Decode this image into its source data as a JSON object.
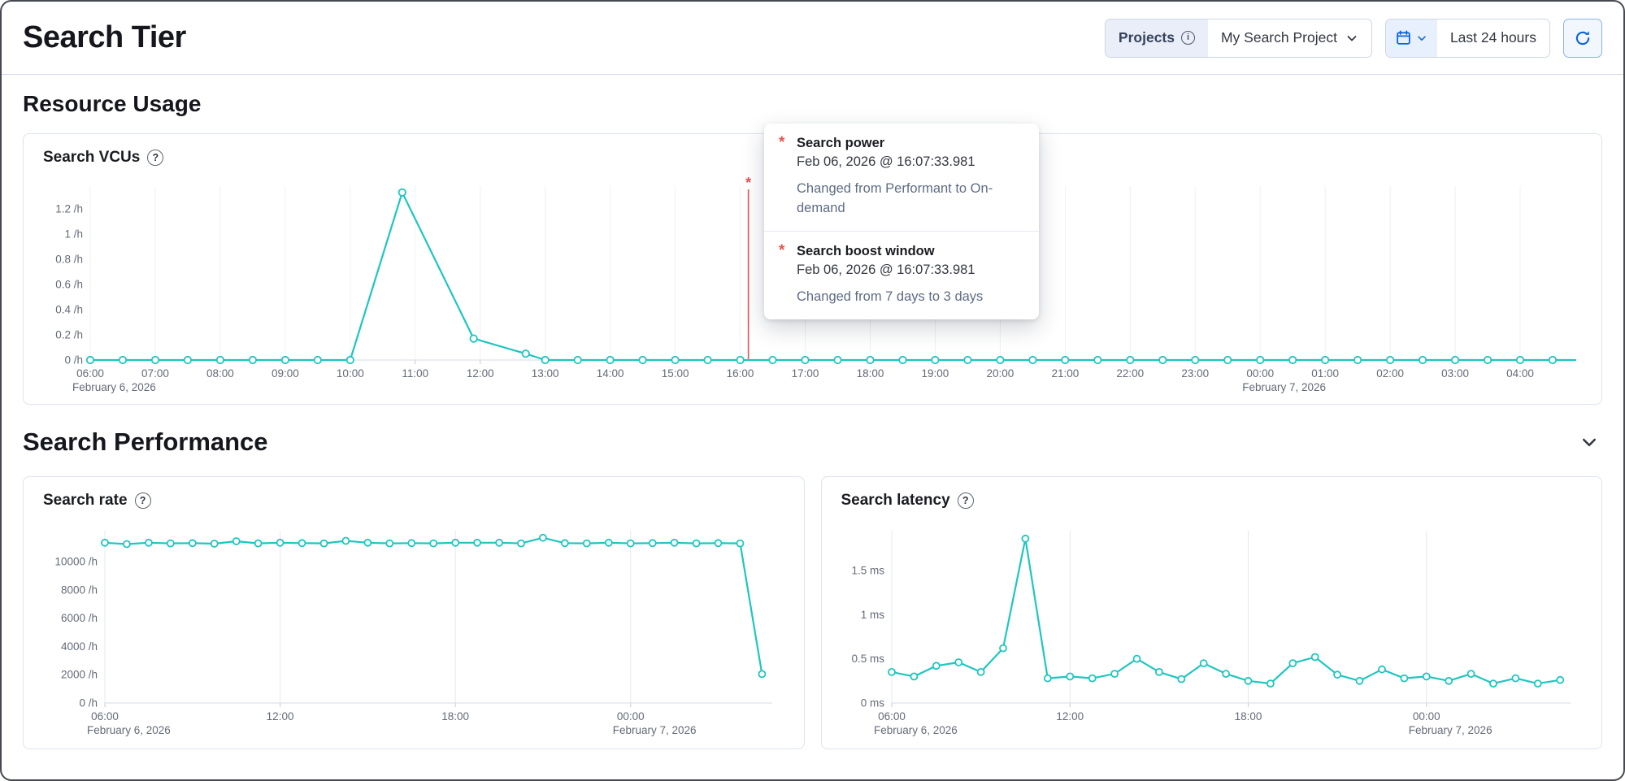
{
  "header": {
    "title": "Search Tier",
    "projects_label": "Projects",
    "project_name": "My Search Project",
    "time_range": "Last 24 hours"
  },
  "sections": {
    "resource_usage": {
      "title": "Resource Usage"
    },
    "search_performance": {
      "title": "Search Performance"
    }
  },
  "icons": {
    "info_glyph": "i",
    "help_glyph": "?"
  },
  "colors": {
    "accent_teal": "#1ec6c0",
    "annotation_red": "#e5534f",
    "primary_blue": "#0b64dd",
    "axis_text": "#646a77"
  },
  "annotation_tooltip": {
    "entries": [
      {
        "marker": "*",
        "title": "Search power",
        "timestamp": "Feb 06, 2026 @ 16:07:33.981",
        "description": "Changed from Performant to On-demand"
      },
      {
        "marker": "*",
        "title": "Search boost window",
        "timestamp": "Feb 06, 2026 @ 16:07:33.981",
        "description": "Changed from 7 days to 3 days"
      }
    ]
  },
  "chart_data": [
    {
      "type": "line",
      "title": "Search VCUs",
      "ylabel_unit": "/h",
      "xlim": [
        6,
        28.85
      ],
      "ylim": [
        0,
        1.38
      ],
      "yticks": [
        {
          "v": 0,
          "label": "0 /h"
        },
        {
          "v": 0.2,
          "label": "0.2 /h"
        },
        {
          "v": 0.4,
          "label": "0.4 /h"
        },
        {
          "v": 0.6,
          "label": "0.6 /h"
        },
        {
          "v": 0.8,
          "label": "0.8 /h"
        },
        {
          "v": 1,
          "label": "1 /h"
        },
        {
          "v": 1.2,
          "label": "1.2 /h"
        }
      ],
      "xticks": [
        {
          "t": 6,
          "label": "06:00",
          "sub": "February 6, 2026"
        },
        {
          "t": 7,
          "label": "07:00"
        },
        {
          "t": 8,
          "label": "08:00"
        },
        {
          "t": 9,
          "label": "09:00"
        },
        {
          "t": 10,
          "label": "10:00"
        },
        {
          "t": 11,
          "label": "11:00"
        },
        {
          "t": 12,
          "label": "12:00"
        },
        {
          "t": 13,
          "label": "13:00"
        },
        {
          "t": 14,
          "label": "14:00"
        },
        {
          "t": 15,
          "label": "15:00"
        },
        {
          "t": 16,
          "label": "16:00"
        },
        {
          "t": 17,
          "label": "17:00"
        },
        {
          "t": 18,
          "label": "18:00"
        },
        {
          "t": 19,
          "label": "19:00"
        },
        {
          "t": 20,
          "label": "20:00"
        },
        {
          "t": 21,
          "label": "21:00"
        },
        {
          "t": 22,
          "label": "22:00"
        },
        {
          "t": 23,
          "label": "23:00"
        },
        {
          "t": 24,
          "label": "00:00",
          "sub": "February 7, 2026"
        },
        {
          "t": 25,
          "label": "01:00"
        },
        {
          "t": 26,
          "label": "02:00"
        },
        {
          "t": 27,
          "label": "03:00"
        },
        {
          "t": 28,
          "label": "04:00"
        }
      ],
      "annotation": {
        "t": 16.126,
        "label": "*",
        "timestamp": "Feb 06, 2026 @ 16:07:33.981"
      },
      "points": [
        [
          6,
          0
        ],
        [
          6.5,
          0
        ],
        [
          7,
          0
        ],
        [
          7.5,
          0
        ],
        [
          8,
          0
        ],
        [
          8.5,
          0
        ],
        [
          9,
          0
        ],
        [
          9.5,
          0
        ],
        [
          10,
          0
        ],
        [
          10.8,
          1.33
        ],
        [
          11.9,
          0.17
        ],
        [
          12.7,
          0.05
        ],
        [
          13,
          0
        ],
        [
          13.5,
          0
        ],
        [
          14,
          0
        ],
        [
          14.5,
          0
        ],
        [
          15,
          0
        ],
        [
          15.5,
          0
        ],
        [
          16,
          0
        ],
        [
          16.5,
          0
        ],
        [
          17,
          0
        ],
        [
          17.5,
          0
        ],
        [
          18,
          0
        ],
        [
          18.5,
          0
        ],
        [
          19,
          0
        ],
        [
          19.5,
          0
        ],
        [
          20,
          0
        ],
        [
          20.5,
          0
        ],
        [
          21,
          0
        ],
        [
          21.5,
          0
        ],
        [
          22,
          0
        ],
        [
          22.5,
          0
        ],
        [
          23,
          0
        ],
        [
          23.5,
          0
        ],
        [
          24,
          0
        ],
        [
          24.5,
          0
        ],
        [
          25,
          0
        ],
        [
          25.5,
          0
        ],
        [
          26,
          0
        ],
        [
          26.5,
          0
        ],
        [
          27,
          0
        ],
        [
          27.5,
          0
        ],
        [
          28,
          0
        ],
        [
          28.5,
          0
        ],
        [
          28.85,
          0,
          0
        ]
      ]
    },
    {
      "type": "line",
      "title": "Search rate",
      "ylabel_unit": "/h",
      "xlim": [
        6,
        28.85
      ],
      "ylim": [
        0,
        12200
      ],
      "yticks": [
        {
          "v": 0,
          "label": "0 /h"
        },
        {
          "v": 2000,
          "label": "2000 /h"
        },
        {
          "v": 4000,
          "label": "4000 /h"
        },
        {
          "v": 6000,
          "label": "6000 /h"
        },
        {
          "v": 8000,
          "label": "8000 /h"
        },
        {
          "v": 10000,
          "label": "10000 /h"
        }
      ],
      "xticks": [
        {
          "t": 6,
          "label": "06:00",
          "sub": "February 6, 2026"
        },
        {
          "t": 12,
          "label": "12:00"
        },
        {
          "t": 18,
          "label": "18:00"
        },
        {
          "t": 24,
          "label": "00:00",
          "sub": "February 7, 2026"
        }
      ],
      "points": [
        [
          6,
          11350
        ],
        [
          6.75,
          11250
        ],
        [
          7.5,
          11350
        ],
        [
          8.25,
          11300
        ],
        [
          9,
          11320
        ],
        [
          9.75,
          11280
        ],
        [
          10.5,
          11450
        ],
        [
          11.25,
          11300
        ],
        [
          12,
          11350
        ],
        [
          12.75,
          11320
        ],
        [
          13.5,
          11300
        ],
        [
          14.25,
          11480
        ],
        [
          15,
          11350
        ],
        [
          15.75,
          11300
        ],
        [
          16.5,
          11320
        ],
        [
          17.25,
          11300
        ],
        [
          18,
          11350
        ],
        [
          18.75,
          11350
        ],
        [
          19.5,
          11350
        ],
        [
          20.25,
          11300
        ],
        [
          21,
          11700
        ],
        [
          21.75,
          11320
        ],
        [
          22.5,
          11300
        ],
        [
          23.25,
          11350
        ],
        [
          24,
          11300
        ],
        [
          24.75,
          11320
        ],
        [
          25.5,
          11350
        ],
        [
          26.25,
          11300
        ],
        [
          27,
          11320
        ],
        [
          27.75,
          11300
        ],
        [
          28.5,
          2050
        ]
      ]
    },
    {
      "type": "line",
      "title": "Search latency",
      "ylabel_unit": "ms",
      "xlim": [
        6,
        28.85
      ],
      "ylim": [
        0,
        1.95
      ],
      "yticks": [
        {
          "v": 0,
          "label": "0 ms"
        },
        {
          "v": 0.5,
          "label": "0.5 ms"
        },
        {
          "v": 1,
          "label": "1 ms"
        },
        {
          "v": 1.5,
          "label": "1.5 ms"
        }
      ],
      "xticks": [
        {
          "t": 6,
          "label": "06:00",
          "sub": "February 6, 2026"
        },
        {
          "t": 12,
          "label": "12:00"
        },
        {
          "t": 18,
          "label": "18:00"
        },
        {
          "t": 24,
          "label": "00:00",
          "sub": "February 7, 2026"
        }
      ],
      "points": [
        [
          6,
          0.35
        ],
        [
          6.75,
          0.3
        ],
        [
          7.5,
          0.42
        ],
        [
          8.25,
          0.46
        ],
        [
          9,
          0.35
        ],
        [
          9.75,
          0.62
        ],
        [
          10.5,
          1.86
        ],
        [
          11.25,
          0.28
        ],
        [
          12,
          0.3
        ],
        [
          12.75,
          0.28
        ],
        [
          13.5,
          0.33
        ],
        [
          14.25,
          0.5
        ],
        [
          15,
          0.35
        ],
        [
          15.75,
          0.27
        ],
        [
          16.5,
          0.45
        ],
        [
          17.25,
          0.33
        ],
        [
          18,
          0.25
        ],
        [
          18.75,
          0.22
        ],
        [
          19.5,
          0.45
        ],
        [
          20.25,
          0.52
        ],
        [
          21,
          0.32
        ],
        [
          21.75,
          0.25
        ],
        [
          22.5,
          0.38
        ],
        [
          23.25,
          0.28
        ],
        [
          24,
          0.3
        ],
        [
          24.75,
          0.25
        ],
        [
          25.5,
          0.33
        ],
        [
          26.25,
          0.22
        ],
        [
          27,
          0.28
        ],
        [
          27.75,
          0.22
        ],
        [
          28.5,
          0.26
        ]
      ]
    }
  ]
}
